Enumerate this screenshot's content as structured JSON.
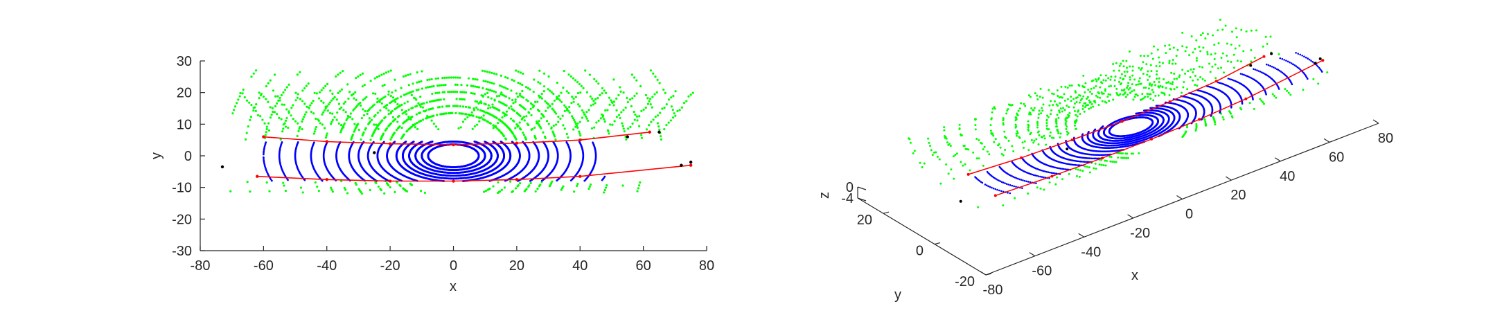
{
  "figure": {
    "background": "#ffffff",
    "axis_color": "#262626",
    "point_colors": {
      "ground": "#0000ff",
      "non_ground": "#00ff00",
      "curb": "#ff0000",
      "outlier": "#000000"
    }
  },
  "chart_data": [
    {
      "type": "scatter",
      "view": "2d-top",
      "xlabel": "x",
      "ylabel": "y",
      "xlim": [
        -80,
        80
      ],
      "ylim": [
        -30,
        30
      ],
      "xticks": [
        "-80",
        "-60",
        "-40",
        "-20",
        "0",
        "20",
        "40",
        "60",
        "80"
      ],
      "yticks": [
        "30",
        "20",
        "10",
        "0",
        "-10",
        "-20",
        "-30"
      ],
      "grid": false,
      "series": [
        {
          "color": "#00ff00",
          "description_points": "scan rings beyond road edges",
          "rings": [
            18,
            21,
            24,
            27,
            30,
            33,
            37,
            41,
            45,
            50,
            55,
            60,
            66,
            72
          ],
          "spread_y": [
            -12,
            27
          ]
        },
        {
          "color": "#0000ff",
          "description_points": "ground rings on road",
          "rings": [
            8,
            10,
            12,
            14,
            16,
            18,
            21,
            24,
            27,
            30,
            33,
            37,
            41,
            45,
            50,
            55,
            60,
            66,
            72
          ],
          "spread_y": [
            -8,
            5
          ]
        },
        {
          "color": "#ff0000",
          "curves": [
            {
              "x": [
                -60,
                -40,
                -20,
                0,
                20,
                40,
                62
              ],
              "y": [
                6,
                4.5,
                3.8,
                3.5,
                4,
                5,
                7.5
              ]
            },
            {
              "x": [
                -62,
                -40,
                -20,
                0,
                20,
                40,
                75
              ],
              "y": [
                -6.5,
                -7.5,
                -8,
                -8,
                -7.5,
                -6.5,
                -3
              ]
            }
          ]
        },
        {
          "color": "#000000",
          "points": [
            [
              -73,
              -3.5
            ],
            [
              -25,
              1
            ],
            [
              55,
              6
            ],
            [
              65,
              7.5
            ],
            [
              72,
              -3
            ],
            [
              75,
              -2
            ]
          ]
        }
      ]
    },
    {
      "type": "scatter",
      "view": "3d",
      "xlabel": "x",
      "ylabel": "y",
      "zlabel": "z",
      "xticks": [
        "-80",
        "-60",
        "-40",
        "-20",
        "0",
        "20",
        "40",
        "60",
        "80"
      ],
      "yticks": [
        "-20",
        "0",
        "20"
      ],
      "zticks": [
        "-4",
        "0"
      ],
      "grid": false
    }
  ]
}
